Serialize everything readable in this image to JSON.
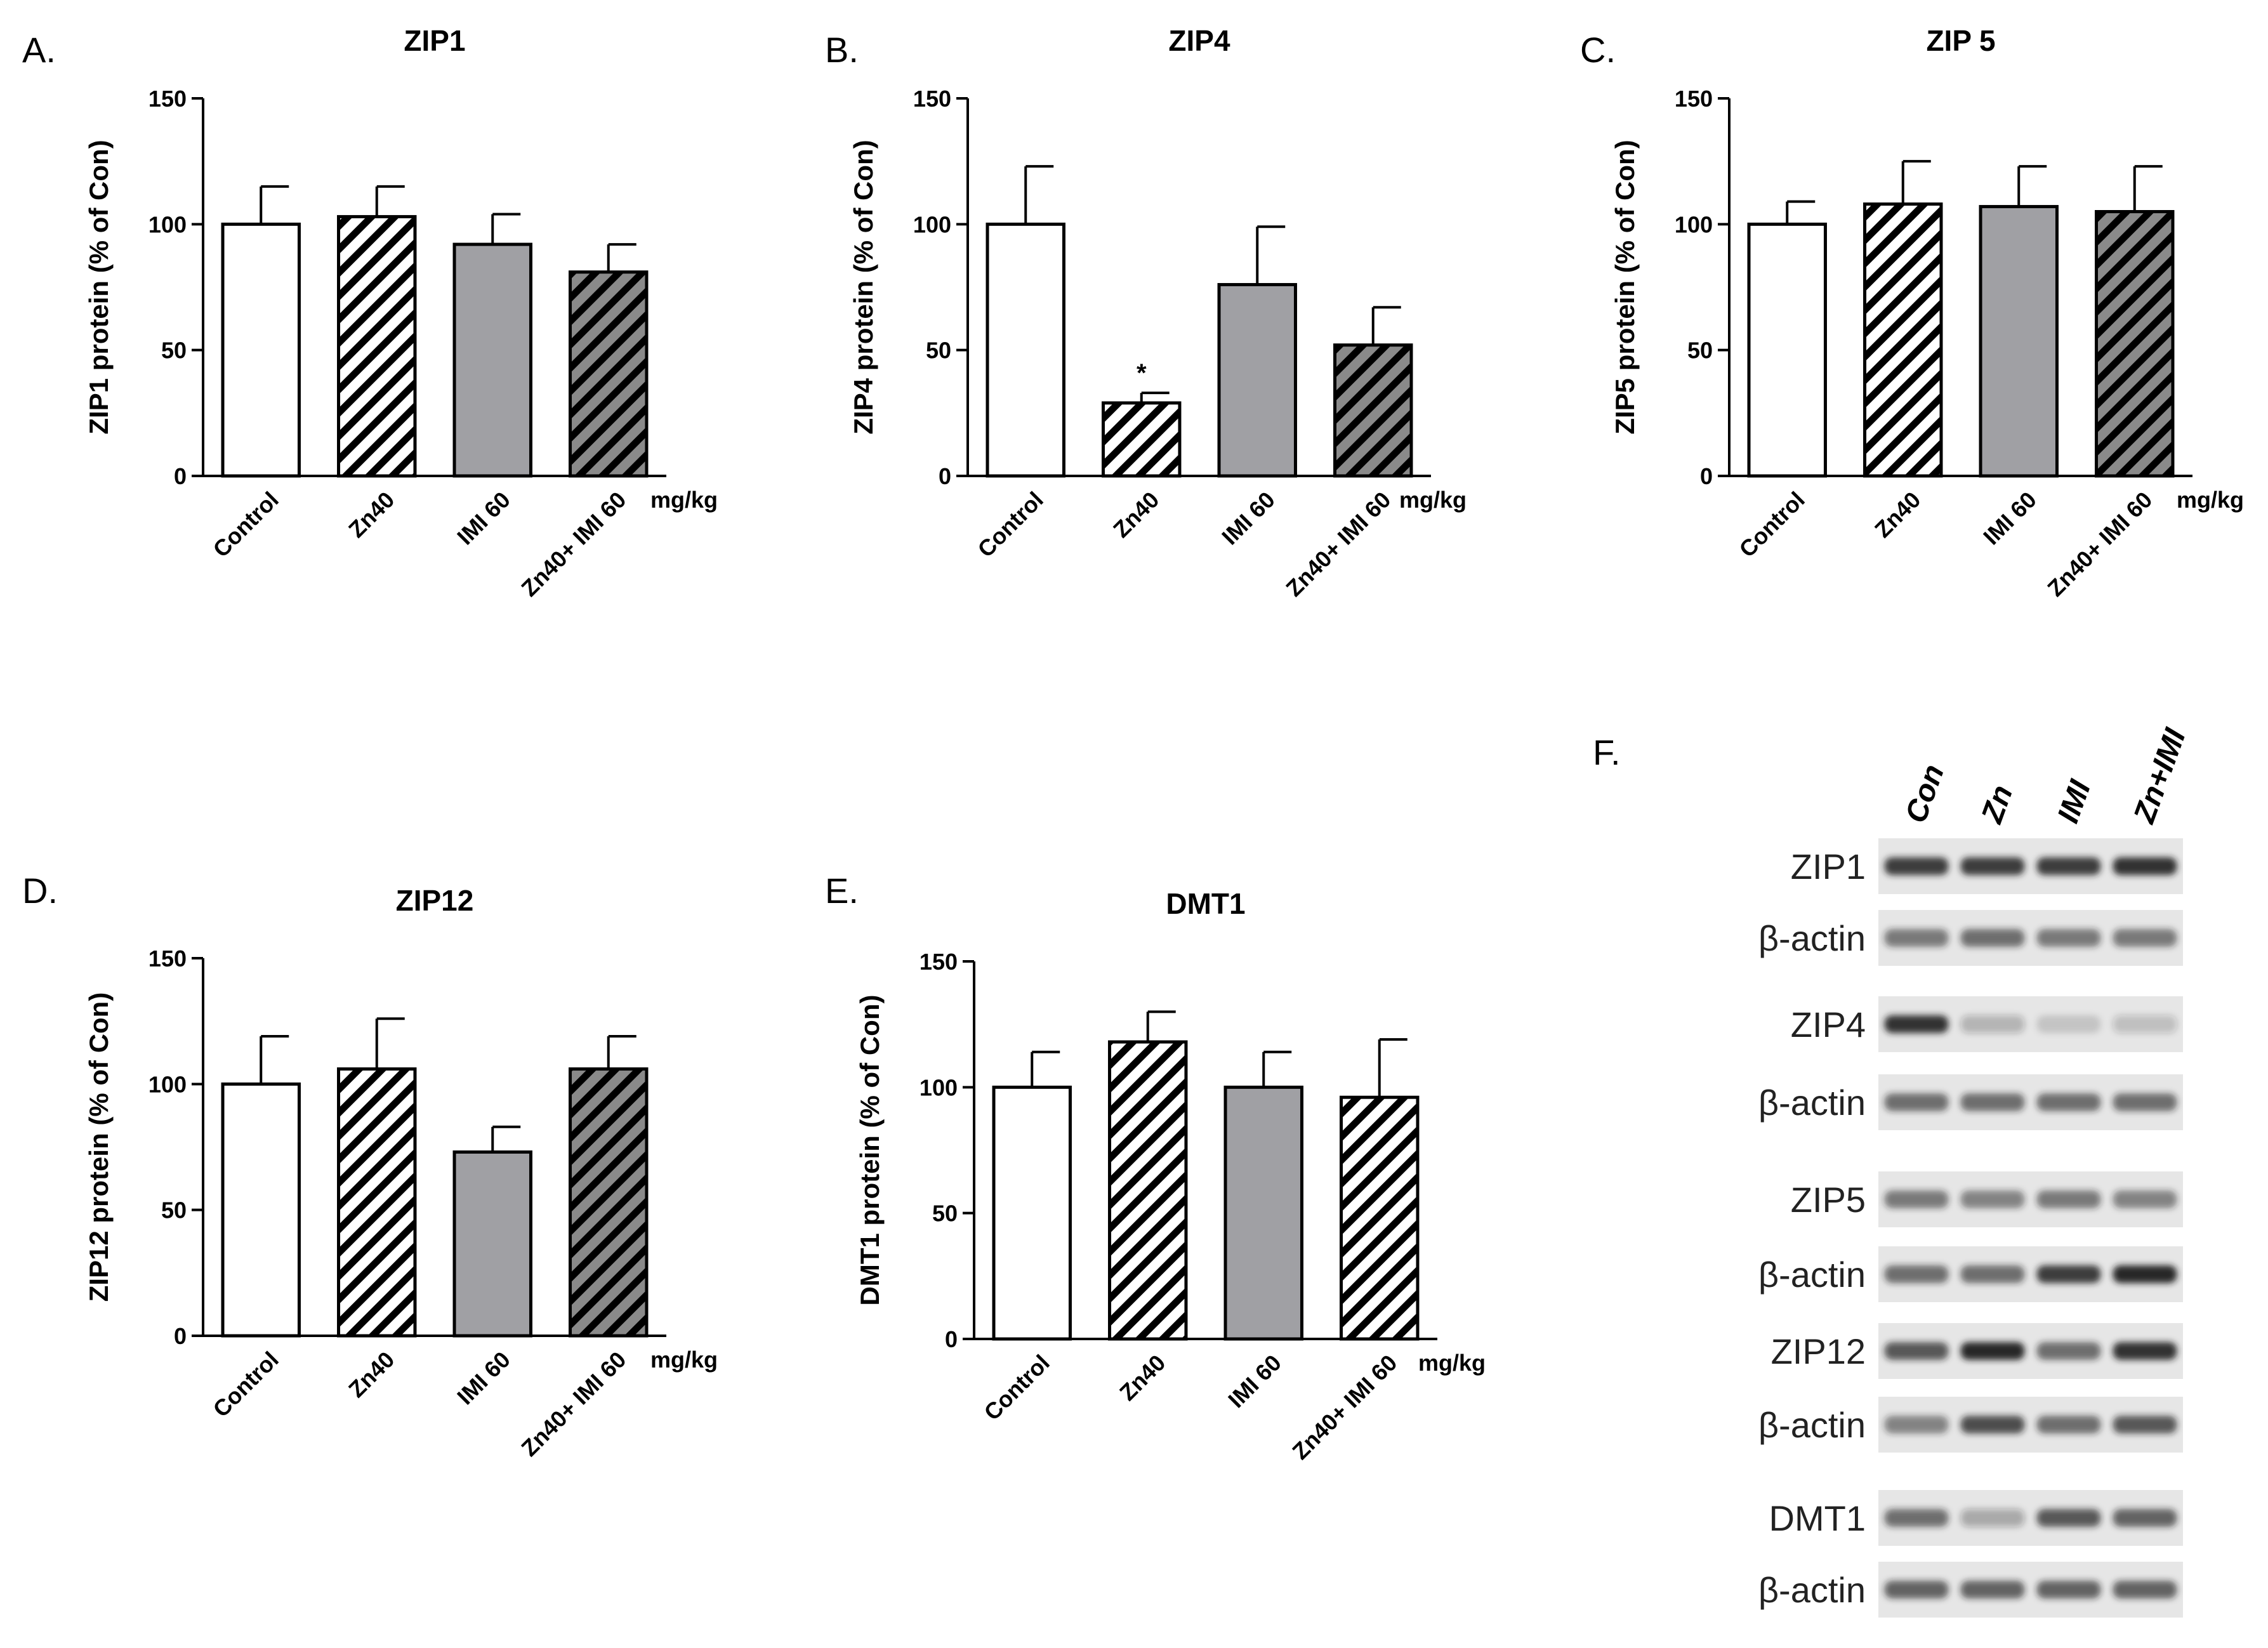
{
  "chart_data": [
    {
      "type": "bar",
      "panel": "A.",
      "title": "ZIP1",
      "ylabel": "ZIP1 protein (% of Con)",
      "xlabel": "",
      "unit": "mg/kg",
      "ylim": [
        0,
        150
      ],
      "yticks": [
        "0",
        "50",
        "100",
        "150"
      ],
      "categories": [
        "Control",
        "Zn40",
        "IMI 60",
        "Zn40+ IMI 60"
      ],
      "values": [
        100,
        103,
        92,
        81
      ],
      "errors": [
        15,
        12,
        12,
        11
      ],
      "fills": [
        "white",
        "hatch-white",
        "gray",
        "hatch-gray"
      ],
      "significance": [
        "",
        "",
        "",
        ""
      ]
    },
    {
      "type": "bar",
      "panel": "B.",
      "title": "ZIP4",
      "ylabel": "ZIP4 protein (% of Con)",
      "xlabel": "",
      "unit": "mg/kg",
      "ylim": [
        0,
        150
      ],
      "yticks": [
        "0",
        "50",
        "100",
        "150"
      ],
      "categories": [
        "Control",
        "Zn40",
        "IMI 60",
        "Zn40+ IMI 60"
      ],
      "values": [
        100,
        29,
        76,
        52
      ],
      "errors": [
        23,
        4,
        23,
        15
      ],
      "fills": [
        "white",
        "hatch-white",
        "gray",
        "hatch-gray"
      ],
      "significance": [
        "",
        "*",
        "",
        ""
      ]
    },
    {
      "type": "bar",
      "panel": "C.",
      "title": "ZIP 5",
      "ylabel": "ZIP5 protein (% of Con)",
      "xlabel": "",
      "unit": "mg/kg",
      "ylim": [
        0,
        150
      ],
      "yticks": [
        "0",
        "50",
        "100",
        "150"
      ],
      "categories": [
        "Control",
        "Zn40",
        "IMI 60",
        "Zn40+ IMI 60"
      ],
      "values": [
        100,
        108,
        107,
        105
      ],
      "errors": [
        9,
        17,
        16,
        18
      ],
      "fills": [
        "white",
        "hatch-white",
        "gray",
        "hatch-gray"
      ],
      "significance": [
        "",
        "",
        "",
        ""
      ]
    },
    {
      "type": "bar",
      "panel": "D.",
      "title": "ZIP12",
      "ylabel": "ZIP12 protein (% of Con)",
      "xlabel": "",
      "unit": "mg/kg",
      "ylim": [
        0,
        150
      ],
      "yticks": [
        "0",
        "50",
        "100",
        "150"
      ],
      "categories": [
        "Control",
        "Zn40",
        "IMI 60",
        "Zn40+ IMI 60"
      ],
      "values": [
        100,
        106,
        73,
        106
      ],
      "errors": [
        19,
        20,
        10,
        13
      ],
      "fills": [
        "white",
        "hatch-white",
        "gray",
        "hatch-gray"
      ],
      "significance": [
        "",
        "",
        "",
        ""
      ]
    },
    {
      "type": "bar",
      "panel": "E.",
      "title": "DMT1",
      "ylabel": "DMT1 protein (% of Con)",
      "xlabel": "",
      "unit": "mg/kg",
      "ylim": [
        0,
        150
      ],
      "yticks": [
        "0",
        "50",
        "100",
        "150"
      ],
      "categories": [
        "Control",
        "Zn40",
        "IMI 60",
        "Zn40+ IMI 60"
      ],
      "values": [
        100,
        118,
        100,
        96
      ],
      "errors": [
        14,
        12,
        14,
        23
      ],
      "fills": [
        "white",
        "hatch-white",
        "gray",
        "hatch-white"
      ],
      "significance": [
        "",
        "",
        "",
        ""
      ]
    }
  ],
  "blot": {
    "panel": "F.",
    "lanes": [
      "Con",
      "Zn",
      "IMI",
      "Zn+IMI"
    ],
    "rows": [
      {
        "label": "ZIP1",
        "intensities": [
          0.85,
          0.85,
          0.85,
          0.9
        ]
      },
      {
        "label": "β-actin",
        "intensities": [
          0.55,
          0.6,
          0.55,
          0.55
        ]
      },
      {
        "label": "ZIP4",
        "intensities": [
          0.9,
          0.25,
          0.15,
          0.2
        ]
      },
      {
        "label": "β-actin",
        "intensities": [
          0.6,
          0.6,
          0.6,
          0.6
        ]
      },
      {
        "label": "ZIP5",
        "intensities": [
          0.55,
          0.5,
          0.55,
          0.5
        ]
      },
      {
        "label": "β-actin",
        "intensities": [
          0.6,
          0.6,
          0.85,
          0.95
        ]
      },
      {
        "label": "ZIP12",
        "intensities": [
          0.7,
          0.95,
          0.6,
          0.9
        ]
      },
      {
        "label": "β-actin",
        "intensities": [
          0.5,
          0.75,
          0.6,
          0.7
        ]
      },
      {
        "label": "DMT1",
        "intensities": [
          0.6,
          0.3,
          0.7,
          0.65
        ]
      },
      {
        "label": "β-actin",
        "intensities": [
          0.65,
          0.65,
          0.65,
          0.65
        ]
      }
    ]
  },
  "colors": {
    "axis": "#000000",
    "bar_gray": "#a0a0a4",
    "bar_dark_gray": "#808080",
    "bar_white": "#ffffff",
    "blot_background": "#e6e6e6",
    "band": "#1e1e1e"
  }
}
